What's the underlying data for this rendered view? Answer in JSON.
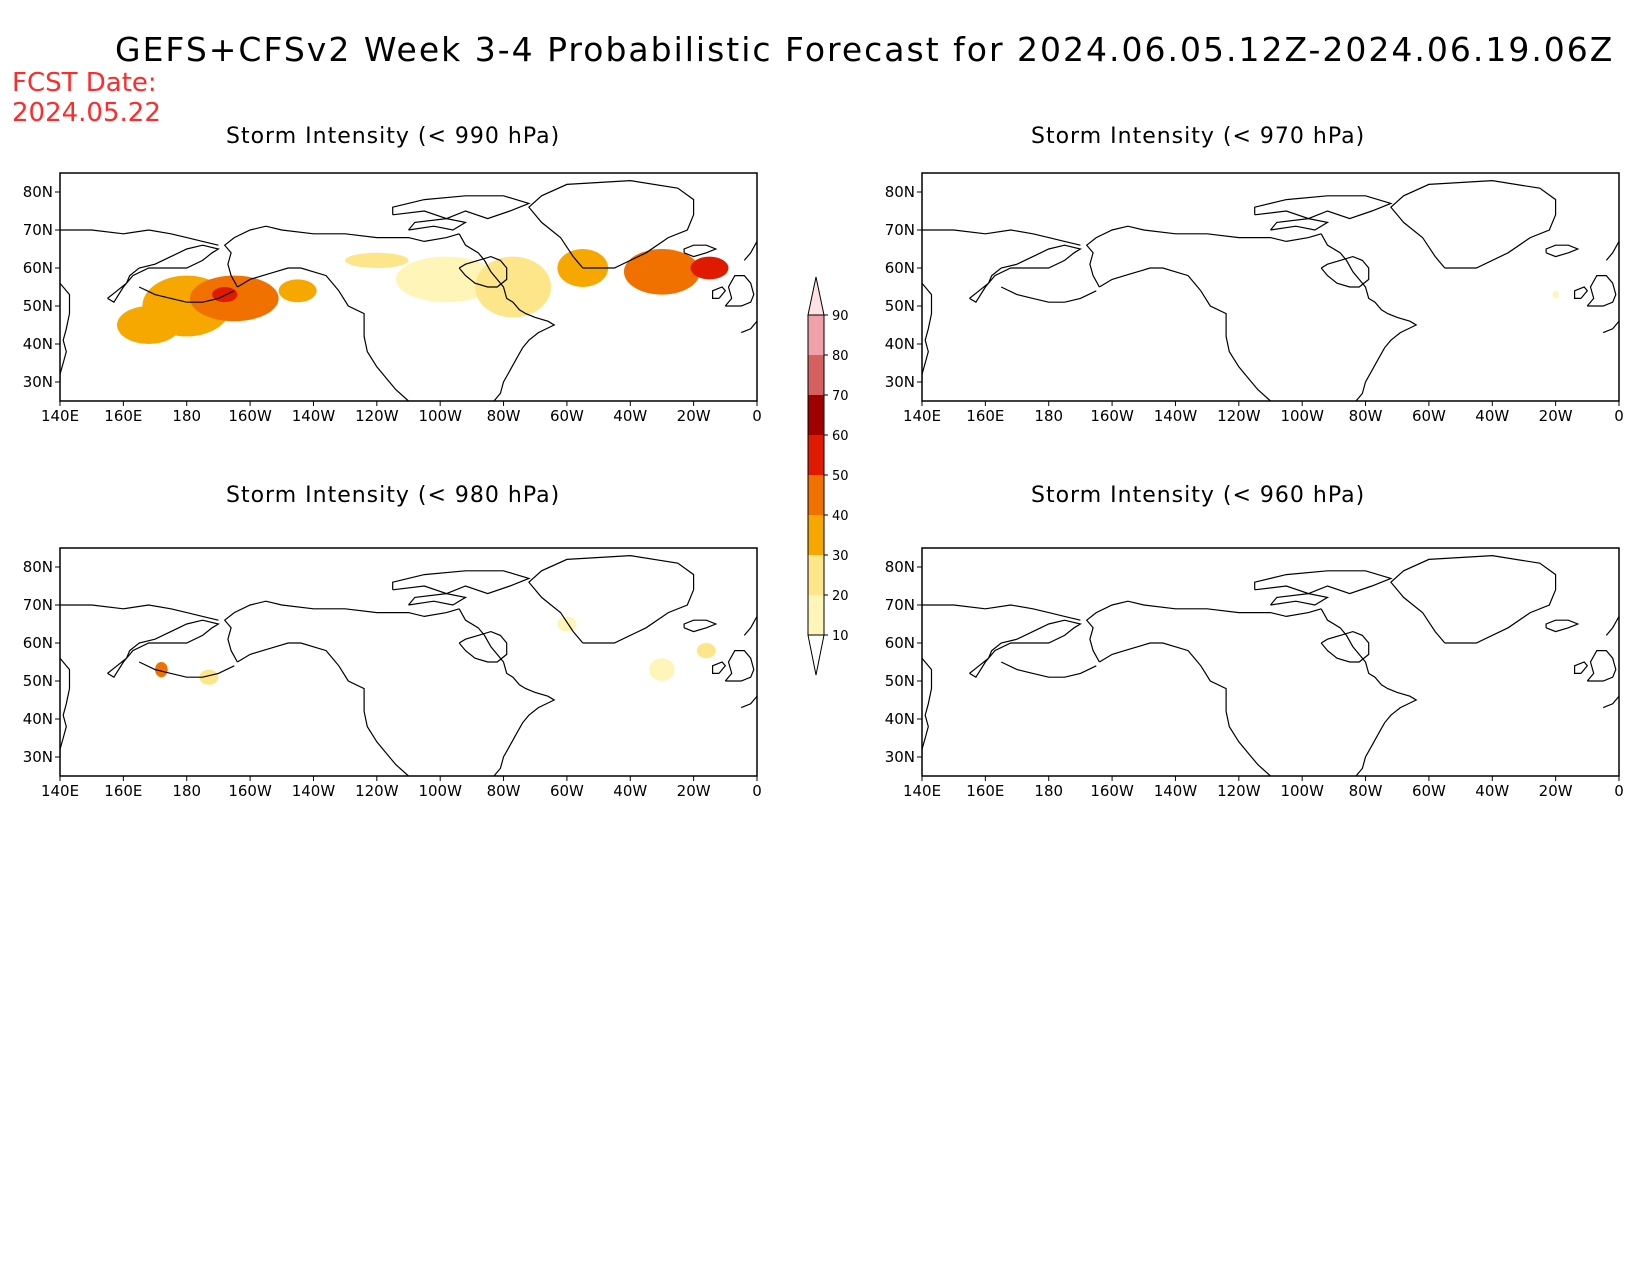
{
  "title": "GEFS+CFSv2 Week 3-4 Probabilistic Forecast for 2024.06.05.12Z-2024.06.19.06Z",
  "fcst_date_label": "FCST Date:",
  "fcst_date": "2024.05.22",
  "colors": {
    "10": "#fff5b8",
    "20": "#fde68a",
    "30": "#f6a800",
    "40": "#f07000",
    "50": "#e01a00",
    "60": "#a00000",
    "70": "#d46060",
    "80": "#f0a0a8",
    "90": "#ffe0e4"
  },
  "colorbar": {
    "levels": [
      "10",
      "20",
      "30",
      "40",
      "50",
      "60",
      "70",
      "80",
      "90"
    ]
  },
  "axes": {
    "lat_ticks": [
      "80N",
      "70N",
      "60N",
      "50N",
      "40N",
      "30N"
    ],
    "lon_ticks": [
      "140E",
      "160E",
      "180",
      "160W",
      "140W",
      "120W",
      "100W",
      "80W",
      "60W",
      "40W",
      "20W",
      "0"
    ]
  },
  "panels": [
    {
      "id": "p990",
      "title": "Storm Intensity (< 990 hPa)",
      "blobs": [
        {
          "lon": 168,
          "lat": 45,
          "level": 30,
          "rx": 10,
          "ry": 5
        },
        {
          "lon": 180,
          "lat": 50,
          "level": 30,
          "rx": 14,
          "ry": 8
        },
        {
          "lon": 195,
          "lat": 52,
          "level": 40,
          "rx": 14,
          "ry": 6
        },
        {
          "lon": 192,
          "lat": 53,
          "level": 50,
          "rx": 4,
          "ry": 2
        },
        {
          "lon": 215,
          "lat": 54,
          "level": 30,
          "rx": 6,
          "ry": 3
        },
        {
          "lon": 240,
          "lat": 62,
          "level": 20,
          "rx": 10,
          "ry": 2
        },
        {
          "lon": 262,
          "lat": 57,
          "level": 10,
          "rx": 16,
          "ry": 6
        },
        {
          "lon": 283,
          "lat": 55,
          "level": 20,
          "rx": 12,
          "ry": 8
        },
        {
          "lon": 305,
          "lat": 60,
          "level": 30,
          "rx": 8,
          "ry": 5
        },
        {
          "lon": 330,
          "lat": 59,
          "level": 40,
          "rx": 12,
          "ry": 6
        },
        {
          "lon": 345,
          "lat": 60,
          "level": 50,
          "rx": 6,
          "ry": 3
        }
      ]
    },
    {
      "id": "p970",
      "title": "Storm Intensity (< 970 hPa)",
      "blobs": [
        {
          "lon": 340,
          "lat": 53,
          "level": 10,
          "rx": 1,
          "ry": 1
        }
      ]
    },
    {
      "id": "p980",
      "title": "Storm Intensity (< 980 hPa)",
      "blobs": [
        {
          "lon": 172,
          "lat": 53,
          "level": 40,
          "rx": 2,
          "ry": 2
        },
        {
          "lon": 187,
          "lat": 51,
          "level": 20,
          "rx": 3,
          "ry": 2
        },
        {
          "lon": 300,
          "lat": 65,
          "level": 10,
          "rx": 3,
          "ry": 2
        },
        {
          "lon": 330,
          "lat": 53,
          "level": 10,
          "rx": 4,
          "ry": 3
        },
        {
          "lon": 344,
          "lat": 58,
          "level": 20,
          "rx": 3,
          "ry": 2
        }
      ]
    },
    {
      "id": "p960",
      "title": "Storm Intensity (< 960 hPa)",
      "blobs": []
    }
  ]
}
